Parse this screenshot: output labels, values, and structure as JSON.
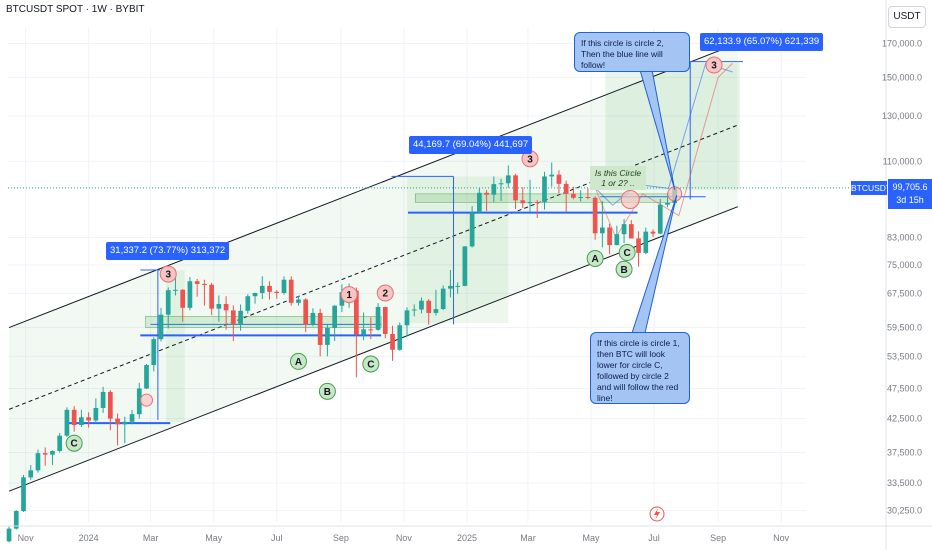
{
  "header": {
    "title": "BTCUSDT SPOT · 1W · BYBIT",
    "currency_button": "USDT",
    "ticker_tag": "BTCUSDT",
    "current_price": "99,705.6",
    "countdown": "3d 15h"
  },
  "chart_data": {
    "type": "candlestick",
    "title": "BTCUSDT SPOT · 1W · BYBIT",
    "y_axis": {
      "scale": "log",
      "range": [
        29000,
        180000
      ],
      "ticks": [
        170000,
        150000,
        130000,
        110000,
        83000,
        75000,
        67500,
        59500,
        53500,
        47500,
        42500,
        37500,
        33500,
        30250
      ],
      "tick_labels": [
        "170,000.0",
        "150,000.0",
        "130,000.0",
        "110,000.0",
        "83,000.0",
        "75,000.0",
        "67,500.0",
        "59,500.0",
        "53,500.0",
        "47,500.0",
        "42,500.0",
        "37,500.0",
        "33,500.0",
        "30,250.0"
      ]
    },
    "x_axis": {
      "range": [
        "2023-10-15",
        "2025-11-25"
      ],
      "ticks": [
        {
          "date": "2023-11-01",
          "label": "Nov"
        },
        {
          "date": "2024-01-01",
          "label": "2024"
        },
        {
          "date": "2024-03-01",
          "label": "Mar"
        },
        {
          "date": "2024-05-01",
          "label": "May"
        },
        {
          "date": "2024-07-01",
          "label": "Jul"
        },
        {
          "date": "2024-09-01",
          "label": "Sep"
        },
        {
          "date": "2024-11-01",
          "label": "Nov"
        },
        {
          "date": "2025-01-01",
          "label": "2025"
        },
        {
          "date": "2025-03-01",
          "label": "Mar"
        },
        {
          "date": "2025-05-01",
          "label": "May"
        },
        {
          "date": "2025-07-01",
          "label": "Jul"
        },
        {
          "date": "2025-09-01",
          "label": "Sep"
        },
        {
          "date": "2025-11-01",
          "label": "Nov"
        }
      ]
    },
    "candle_start": "2023-10-16",
    "candle_step_days": 7,
    "candles": [
      [
        27000,
        28500,
        26900,
        28300
      ],
      [
        28300,
        30300,
        28200,
        30200
      ],
      [
        30200,
        34500,
        30100,
        34200
      ],
      [
        34200,
        35800,
        33900,
        35100
      ],
      [
        35100,
        37900,
        34800,
        37400
      ],
      [
        37400,
        38200,
        35700,
        37200
      ],
      [
        37200,
        37800,
        35800,
        37700
      ],
      [
        37700,
        40300,
        37500,
        39900
      ],
      [
        39900,
        44300,
        39700,
        43900
      ],
      [
        43900,
        44500,
        40500,
        41500
      ],
      [
        41500,
        43900,
        41200,
        42700
      ],
      [
        42700,
        43500,
        41100,
        42200
      ],
      [
        42200,
        45800,
        41800,
        44200
      ],
      [
        44200,
        47800,
        43400,
        46900
      ],
      [
        46900,
        47200,
        40700,
        42500
      ],
      [
        42500,
        43300,
        38500,
        41600
      ],
      [
        41600,
        42800,
        38800,
        42000
      ],
      [
        42000,
        43900,
        41600,
        43200
      ],
      [
        43200,
        48500,
        42500,
        47500
      ],
      [
        47500,
        52000,
        47400,
        51800
      ],
      [
        51800,
        57400,
        50600,
        57000
      ],
      [
        57000,
        64000,
        56500,
        62400
      ],
      [
        62400,
        69000,
        59300,
        68300
      ],
      [
        68300,
        73700,
        67000,
        68400
      ],
      [
        68400,
        68600,
        60800,
        64000
      ],
      [
        64000,
        71700,
        63400,
        70600
      ],
      [
        70600,
        71200,
        66700,
        69900
      ],
      [
        69900,
        71000,
        64500,
        69700
      ],
      [
        69700,
        70200,
        62300,
        63800
      ],
      [
        63800,
        67000,
        60800,
        64900
      ],
      [
        64900,
        66800,
        59000,
        63400
      ],
      [
        63400,
        64600,
        56600,
        60300
      ],
      [
        60300,
        64800,
        58800,
        63300
      ],
      [
        63300,
        67300,
        62600,
        66800
      ],
      [
        66800,
        67700,
        65000,
        67600
      ],
      [
        67600,
        71900,
        66100,
        69400
      ],
      [
        69400,
        70600,
        66000,
        67900
      ],
      [
        67900,
        68300,
        66200,
        67600
      ],
      [
        67600,
        71900,
        67200,
        71000
      ],
      [
        71000,
        71900,
        64500,
        65200
      ],
      [
        65200,
        66900,
        64500,
        66000
      ],
      [
        66000,
        66300,
        58500,
        60200
      ],
      [
        60200,
        63900,
        59800,
        62800
      ],
      [
        62800,
        63800,
        53500,
        55800
      ],
      [
        55800,
        60300,
        53500,
        59400
      ],
      [
        59400,
        64600,
        56600,
        64500
      ],
      [
        64500,
        69800,
        63000,
        67800
      ],
      [
        67800,
        70000,
        64000,
        68200
      ],
      [
        68200,
        69000,
        49500,
        58000
      ],
      [
        58000,
        62900,
        56800,
        59100
      ],
      [
        59100,
        61800,
        57000,
        59000
      ],
      [
        59000,
        65100,
        58800,
        64200
      ],
      [
        64200,
        64300,
        57200,
        58100
      ],
      [
        58100,
        59900,
        52600,
        54800
      ],
      [
        54800,
        60600,
        54600,
        60000
      ],
      [
        60000,
        64100,
        57600,
        63400
      ],
      [
        63400,
        64800,
        62000,
        63600
      ],
      [
        63600,
        66500,
        62700,
        65700
      ],
      [
        65700,
        66100,
        60100,
        62800
      ],
      [
        62800,
        68400,
        62200,
        63700
      ],
      [
        63700,
        69500,
        63500,
        68700
      ],
      [
        68700,
        73600,
        66500,
        69400
      ],
      [
        69400,
        70300,
        67400,
        69400
      ],
      [
        69400,
        80400,
        69300,
        80300
      ],
      [
        80300,
        93200,
        80000,
        91000
      ],
      [
        91000,
        99600,
        90600,
        97900
      ],
      [
        97900,
        98900,
        91500,
        97200
      ],
      [
        97200,
        104000,
        94500,
        101100
      ],
      [
        101100,
        103100,
        95000,
        101400
      ],
      [
        101400,
        108300,
        99800,
        104400
      ],
      [
        104400,
        105000,
        92200,
        95200
      ],
      [
        95200,
        99900,
        92500,
        94200
      ],
      [
        94200,
        102700,
        91200,
        94600
      ],
      [
        94600,
        95300,
        89200,
        94500
      ],
      [
        94500,
        105800,
        92000,
        104000
      ],
      [
        104000,
        109500,
        100100,
        104700
      ],
      [
        104700,
        106400,
        97800,
        101200
      ],
      [
        101200,
        102400,
        91200,
        97600
      ],
      [
        97600,
        100100,
        95600,
        96100
      ],
      [
        96100,
        98800,
        94800,
        96400
      ],
      [
        96400,
        99500,
        95600,
        96100
      ],
      [
        96100,
        96700,
        82300,
        84300
      ],
      [
        84300,
        95000,
        80000,
        86100
      ],
      [
        86100,
        87300,
        78000,
        80700
      ],
      [
        80700,
        86700,
        80600,
        84000
      ],
      [
        84000,
        88800,
        81300,
        87200
      ],
      [
        87200,
        88500,
        82800,
        82700
      ],
      [
        82700,
        84900,
        74500,
        78400
      ],
      [
        78400,
        86100,
        78000,
        84800
      ],
      [
        84800,
        85500,
        83100,
        84200
      ],
      [
        84200,
        95700,
        84000,
        93700
      ],
      [
        93700,
        97900,
        92800,
        94300
      ],
      [
        94300,
        99700,
        93500,
        99700
      ]
    ],
    "channel": {
      "upper": [
        [
          "2023-10-16",
          59500
        ],
        [
          "2025-09-20",
          170000
        ]
      ],
      "lower": [
        [
          "2023-10-16",
          32500
        ],
        [
          "2025-09-20",
          93000
        ]
      ]
    },
    "annotations": {
      "measure_1": "31,337.2 (73.77%) 313,372",
      "measure_2": "44,169.7 (69.04%) 441,697",
      "measure_3": "62,133.9 (65.07%) 621,339",
      "note_blue_line": "If this circle is circle 2, Then the blue line will follow!",
      "note_red_line": "If this circle is circle 1, then BTC will look lower for circle C, followed by circle 2  and will follow the red line!",
      "note_question": "Is this Circle 1 or 2? ..",
      "wave_labels": [
        "C",
        "3",
        "A",
        "B",
        "1",
        "C",
        "2",
        "3",
        "A",
        "B",
        "C",
        "3"
      ]
    }
  }
}
